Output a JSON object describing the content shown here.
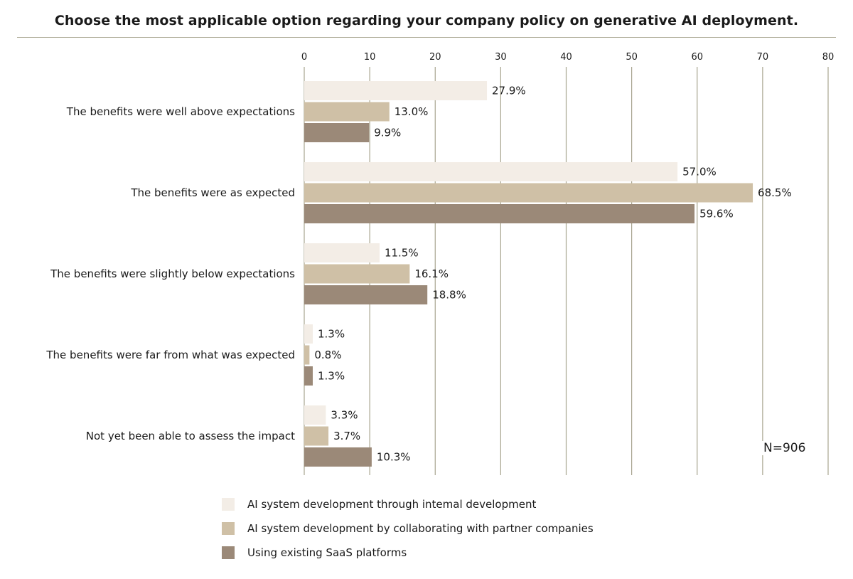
{
  "chart_data": {
    "type": "bar",
    "orientation": "horizontal",
    "title": "Choose the most applicable option regarding your company policy on generative AI deployment.",
    "categories": [
      "The benefits were well above expectations",
      "The benefits were as expected",
      "The benefits were slightly below expectations",
      "The benefits were far from what was expected",
      "Not yet been able to assess the impact"
    ],
    "series": [
      {
        "name": "AI system development through intemal development",
        "color": "#f3ede6",
        "values": [
          27.9,
          57.0,
          11.5,
          1.3,
          3.3
        ],
        "labels": [
          "27.9%",
          "57.0%",
          "11.5%",
          "1.3%",
          "3.3%"
        ]
      },
      {
        "name": "AI system development by collaborating with partner companies",
        "color": "#cfc0a6",
        "values": [
          13.0,
          68.5,
          16.1,
          0.8,
          3.7
        ],
        "labels": [
          "13.0%",
          "68.5%",
          "16.1%",
          "0.8%",
          "3.7%"
        ]
      },
      {
        "name": "Using existing SaaS platforms",
        "color": "#9b8978",
        "values": [
          9.9,
          59.6,
          18.8,
          1.3,
          10.3
        ],
        "labels": [
          "9.9%",
          "59.6%",
          "18.8%",
          "1.3%",
          "10.3%"
        ]
      }
    ],
    "xlim": [
      0,
      80
    ],
    "ticks": [
      0,
      10,
      20,
      30,
      40,
      50,
      60,
      70,
      80
    ],
    "tick_labels": [
      "0",
      "10",
      "20",
      "30",
      "40",
      "50",
      "60",
      "70",
      "80"
    ],
    "grid": true,
    "legend_position": "bottom-left",
    "annotation": "N=906",
    "gridline_color": "#a8a58f"
  }
}
